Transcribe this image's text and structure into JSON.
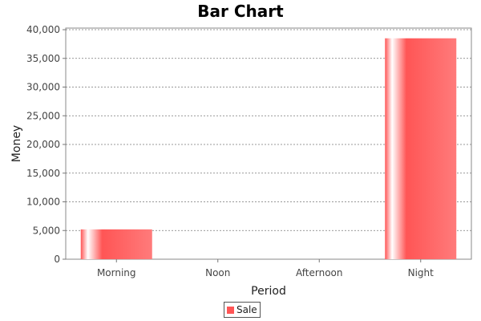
{
  "chart_data": {
    "type": "bar",
    "title": "Bar Chart",
    "xlabel": "Period",
    "ylabel": "Money",
    "categories": [
      "Morning",
      "Noon",
      "Afternoon",
      "Night"
    ],
    "series": [
      {
        "name": "Sale",
        "values": [
          5200,
          0,
          0,
          38500
        ],
        "color": "#ff5555"
      }
    ],
    "ylim": [
      0,
      40000
    ],
    "yticks": [
      "0",
      "5,000",
      "10,000",
      "15,000",
      "20,000",
      "25,000",
      "30,000",
      "35,000",
      "40,000"
    ],
    "ytick_values": [
      0,
      5000,
      10000,
      15000,
      20000,
      25000,
      30000,
      35000,
      40000
    ],
    "grid": true,
    "legend_position": "bottom"
  }
}
